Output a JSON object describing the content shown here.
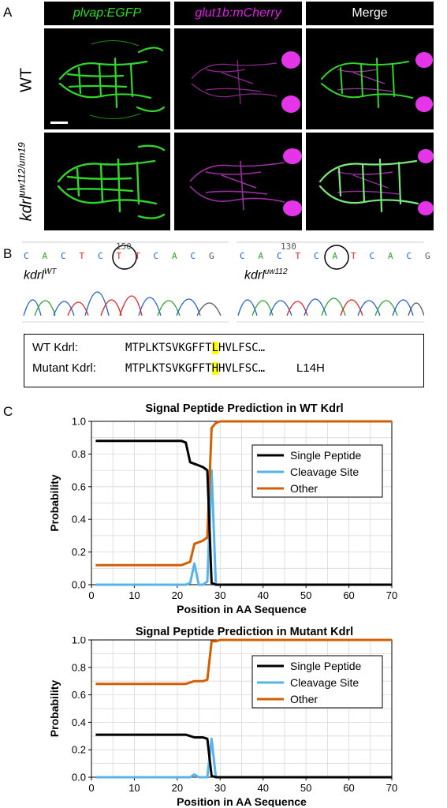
{
  "panelA": {
    "letter": "A",
    "headers": [
      "plvap:EGFP",
      "glut1b:mCherry",
      "Merge"
    ],
    "row_labels": {
      "wt": "WT",
      "mut_base": "kdrl",
      "mut_sup": "uw112/um19"
    }
  },
  "panelB": {
    "letter": "B",
    "left": {
      "label_base": "kdrl",
      "label_sup": "WT",
      "position": "150",
      "bases": [
        "C",
        "A",
        "C",
        "T",
        "C",
        "T",
        "T",
        "C",
        "A",
        "C",
        "G"
      ]
    },
    "right": {
      "label_base": "kdrl",
      "label_sup": "uw112",
      "position": "130",
      "bases": [
        "C",
        "A",
        "C",
        "T",
        "C",
        "A",
        "T",
        "C",
        "A",
        "C",
        "G"
      ]
    },
    "protein": {
      "wt_label": "WT Kdrl:",
      "wt_pre": "MTPLKTSVKGFFT",
      "wt_hl": "L",
      "wt_post": "HVLFSC…",
      "mut_label": "Mutant Kdrl:",
      "mut_pre": "MTPLKTSVKGFFT",
      "mut_hl": "H",
      "mut_post": "HVLFSC…",
      "mutation": "L14H"
    }
  },
  "panelC": {
    "letter": "C"
  },
  "colors": {
    "single_peptide": "#000000",
    "cleavage_site": "#56b4e9",
    "other": "#d55e00",
    "A": "#2ca02c",
    "C": "#1f5fd0",
    "G": "#555555",
    "T": "#e02020"
  },
  "chart_data": [
    {
      "type": "line",
      "title": "Signal Peptide Prediction in WT Kdrl",
      "xlabel": "Position in AA Sequence",
      "ylabel": "Probability",
      "xlim": [
        0,
        70
      ],
      "ylim": [
        0,
        1.0
      ],
      "xticks": [
        "0",
        "10",
        "20",
        "30",
        "40",
        "50",
        "60",
        "70"
      ],
      "yticks": [
        "0.0",
        "0.2",
        "0.4",
        "0.6",
        "0.8",
        "1.0"
      ],
      "grid": true,
      "legend": "top-right",
      "series": [
        {
          "name": "Single Peptide",
          "x": [
            1,
            21,
            22,
            23,
            24,
            25,
            26,
            27,
            28,
            29,
            70
          ],
          "y": [
            0.88,
            0.88,
            0.87,
            0.75,
            0.74,
            0.73,
            0.72,
            0.7,
            0.01,
            0.0,
            0.0
          ]
        },
        {
          "name": "Cleavage Site",
          "x": [
            1,
            22,
            23,
            24,
            25,
            26,
            27,
            28,
            29,
            70
          ],
          "y": [
            0.0,
            0.0,
            0.01,
            0.13,
            0.0,
            0.0,
            0.02,
            0.7,
            0.0,
            0.0
          ]
        },
        {
          "name": "Other",
          "x": [
            1,
            21,
            22,
            23,
            24,
            25,
            26,
            27,
            28,
            29,
            30,
            70
          ],
          "y": [
            0.12,
            0.12,
            0.13,
            0.14,
            0.25,
            0.26,
            0.27,
            0.29,
            0.96,
            0.99,
            1.0,
            1.0
          ]
        }
      ]
    },
    {
      "type": "line",
      "title": "Signal Peptide Prediction in Mutant Kdrl",
      "xlabel": "Position in AA Sequence",
      "ylabel": "Probability",
      "xlim": [
        0,
        70
      ],
      "ylim": [
        0,
        1.0
      ],
      "xticks": [
        "0",
        "10",
        "20",
        "30",
        "40",
        "50",
        "60",
        "70"
      ],
      "yticks": [
        "0.0",
        "0.2",
        "0.4",
        "0.6",
        "0.8",
        "1.0"
      ],
      "grid": true,
      "legend": "right",
      "series": [
        {
          "name": "Single Peptide",
          "x": [
            1,
            22,
            23,
            24,
            25,
            26,
            27,
            28,
            29,
            70
          ],
          "y": [
            0.31,
            0.31,
            0.3,
            0.29,
            0.29,
            0.29,
            0.28,
            0.01,
            0.0,
            0.0
          ]
        },
        {
          "name": "Cleavage Site",
          "x": [
            1,
            23,
            24,
            25,
            26,
            27,
            28,
            29,
            70
          ],
          "y": [
            0.0,
            0.0,
            0.02,
            0.0,
            0.0,
            0.0,
            0.28,
            0.0,
            0.0
          ]
        },
        {
          "name": "Other",
          "x": [
            1,
            22,
            23,
            24,
            25,
            26,
            27,
            28,
            29,
            30,
            70
          ],
          "y": [
            0.68,
            0.68,
            0.69,
            0.7,
            0.7,
            0.7,
            0.71,
            0.99,
            0.99,
            1.0,
            1.0
          ]
        }
      ]
    }
  ]
}
